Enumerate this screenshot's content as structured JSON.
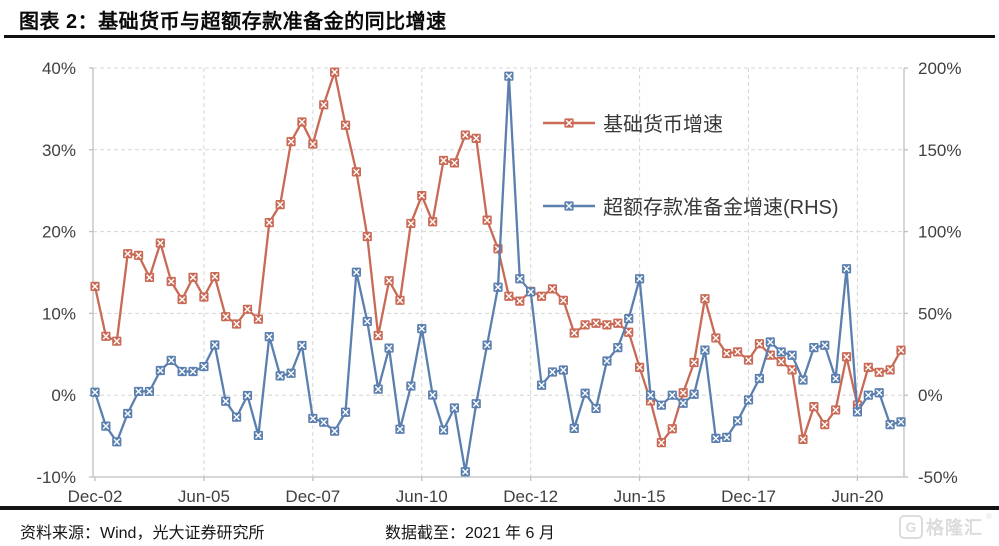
{
  "header": {
    "title": "图表 2：基础货币与超额存款准备金的同比增速"
  },
  "legend": [
    {
      "label": "基础货币增速"
    },
    {
      "label": "超额存款准备金增速(RHS)"
    }
  ],
  "footer": {
    "source": "资料来源：Wind，光大证券研究所",
    "cutoff": "数据截至：2021 年 6 月",
    "watermark_icon": "G",
    "watermark": "格隆汇",
    "watermark_reg": "®"
  },
  "chart_data": {
    "type": "line",
    "title": "基础货币与超额存款准备金的同比增速",
    "frequency": "quarterly",
    "x_start": "Dec-02",
    "x_end": "Jun-21",
    "x_tick_labels": [
      "Dec-02",
      "Jun-05",
      "Dec-07",
      "Jun-10",
      "Dec-12",
      "Jun-15",
      "Dec-17",
      "Jun-20"
    ],
    "x_tick_indices": [
      0,
      10,
      20,
      30,
      40,
      50,
      60,
      70
    ],
    "left_axis": {
      "ticks": [
        "40%",
        "30%",
        "20%",
        "10%",
        "0%",
        "-10%"
      ],
      "values": [
        40,
        30,
        20,
        10,
        0,
        -10
      ],
      "range": [
        -10,
        40
      ]
    },
    "right_axis": {
      "ticks": [
        "200%",
        "150%",
        "100%",
        "50%",
        "0%",
        "-50%"
      ],
      "values": [
        200,
        150,
        100,
        50,
        0,
        -50
      ],
      "range": [
        -50,
        200
      ]
    },
    "grid": "dashed",
    "legend_position": "upper-right-inside",
    "colors": {
      "base_money": "#C96A56",
      "excess_reserves": "#5B7FAE",
      "gridline": "#D6D6D6",
      "spine": "#BFBFBF",
      "axis_text": "#404040"
    },
    "series": [
      {
        "name": "基础货币增速",
        "axis": "left",
        "color": "#C96A56",
        "marker": "x-square",
        "values": [
          13.3,
          7.2,
          6.6,
          17.3,
          17.1,
          14.4,
          18.6,
          13.9,
          11.7,
          14.4,
          12.0,
          14.5,
          9.6,
          8.7,
          10.5,
          9.3,
          21.1,
          23.3,
          31.0,
          33.4,
          30.7,
          35.5,
          39.5,
          33.0,
          27.3,
          19.4,
          7.3,
          14.0,
          11.6,
          21.0,
          24.4,
          21.2,
          28.7,
          28.4,
          31.8,
          31.4,
          21.4,
          17.9,
          12.1,
          11.5,
          12.7,
          12.1,
          13.0,
          11.6,
          7.6,
          8.6,
          8.8,
          8.6,
          8.8,
          7.7,
          3.4,
          -0.7,
          -5.8,
          -4.1,
          0.3,
          4.0,
          11.8,
          7.0,
          5.1,
          5.3,
          4.3,
          6.3,
          4.9,
          4.1,
          3.1,
          -5.4,
          -1.4,
          -3.6,
          -1.8,
          4.7,
          -1.2,
          3.4,
          2.8,
          3.1,
          5.5
        ]
      },
      {
        "name": "超额存款准备金增速(RHS)",
        "axis": "right",
        "color": "#5B7FAE",
        "marker": "x-square",
        "values": [
          1.8,
          -18.9,
          -28.5,
          -11.2,
          2.3,
          2.3,
          15.1,
          21.3,
          14.5,
          14.5,
          17.5,
          30.7,
          -3.7,
          -13.4,
          -0.2,
          -24.6,
          35.8,
          11.8,
          13.4,
          30.4,
          -14.2,
          -16.5,
          -22.0,
          -10.4,
          75.2,
          45.1,
          3.7,
          28.8,
          -20.8,
          5.6,
          40.7,
          0.1,
          -21.3,
          -7.8,
          -46.8,
          -5.2,
          30.6,
          66.0,
          195.0,
          71.2,
          63.2,
          6.1,
          14.2,
          15.4,
          -20.3,
          1.2,
          -8.1,
          20.9,
          29.1,
          46.8,
          71.2,
          0.0,
          -6.1,
          0.0,
          -4.9,
          0.6,
          27.6,
          -26.4,
          -25.8,
          -15.7,
          -2.9,
          10.2,
          32.5,
          26.4,
          24.4,
          9.3,
          29.1,
          30.5,
          10.2,
          77.3,
          -10.2,
          0.0,
          1.5,
          -18.0,
          -16.3
        ]
      }
    ]
  }
}
